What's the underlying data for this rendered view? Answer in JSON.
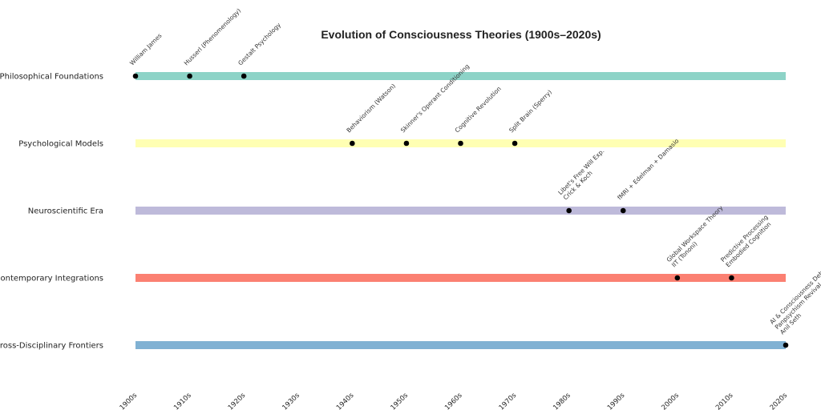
{
  "chart_data": {
    "type": "timeline",
    "title": "Evolution of Consciousness Theories (1900s–2020s)",
    "x_ticks": [
      "1900s",
      "1910s",
      "1920s",
      "1930s",
      "1940s",
      "1950s",
      "1960s",
      "1970s",
      "1980s",
      "1990s",
      "2000s",
      "2010s",
      "2020s"
    ],
    "xlim": [
      1900,
      2020
    ],
    "grid": false,
    "rows": [
      {
        "label": "Philosophical Foundations",
        "color": "#8dd3c7",
        "events": [
          {
            "year": 1900,
            "label": "William James"
          },
          {
            "year": 1910,
            "label": "Husserl (Phenomenology)"
          },
          {
            "year": 1920,
            "label": "Gestalt Psychology"
          }
        ]
      },
      {
        "label": "Psychological Models",
        "color": "#ffffb3",
        "events": [
          {
            "year": 1940,
            "label": "Behaviorism (Watson)"
          },
          {
            "year": 1950,
            "label": "Skinner's Operant Conditioning"
          },
          {
            "year": 1960,
            "label": "Cognitive Revolution"
          },
          {
            "year": 1970,
            "label": "Split Brain (Sperry)"
          }
        ]
      },
      {
        "label": "Neuroscientific Era",
        "color": "#bebada",
        "events": [
          {
            "year": 1980,
            "label": "Libet's Free Will Exp.\nCrick & Koch"
          },
          {
            "year": 1990,
            "label": "fMRI + Edelman + Damasio"
          }
        ]
      },
      {
        "label": "Contemporary Integrations",
        "color": "#fb8072",
        "events": [
          {
            "year": 2000,
            "label": "Global Workspace Theory\nIIT (Tononi)"
          },
          {
            "year": 2010,
            "label": "Predictive Processing\nEmbodied Cognition"
          }
        ]
      },
      {
        "label": "Cross-Disciplinary Frontiers",
        "color": "#80b1d3",
        "events": [
          {
            "year": 2020,
            "label": "AI & Consciousness Debate\nPanpsychism Revival\nAnil Seth"
          }
        ]
      }
    ]
  }
}
